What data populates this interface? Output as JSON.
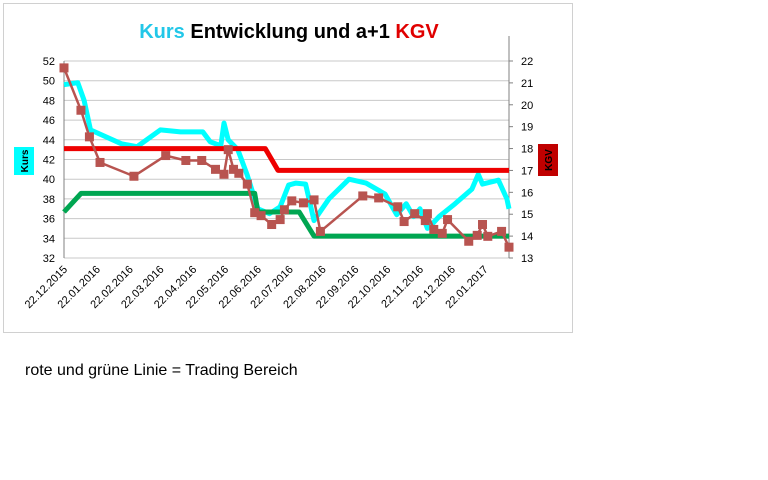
{
  "caption": "rote und grüne Linie = Trading Bereich",
  "chart_data": {
    "type": "line",
    "title_parts": [
      {
        "text": "Kurs",
        "color": "#22c7e8"
      },
      {
        "text": " Entwicklung und a+1 ",
        "color": "#000000"
      },
      {
        "text": "KGV",
        "color": "#e00000"
      }
    ],
    "ylabel_left": "Kurs",
    "ylabel_right": "KGV",
    "ylabel_left_bg": "#00ffff",
    "ylabel_right_bg": "#c00000",
    "y_left": {
      "min": 32,
      "max": 52,
      "ticks": [
        "32",
        "34",
        "36",
        "38",
        "40",
        "42",
        "44",
        "46",
        "48",
        "50",
        "52"
      ]
    },
    "y_right": {
      "min": 13,
      "max": 22,
      "ticks": [
        "13",
        "14",
        "15",
        "16",
        "17",
        "18",
        "19",
        "20",
        "21",
        "22"
      ]
    },
    "grid": true,
    "x_range": {
      "start": "2015-12-22",
      "end": "2017-02-14"
    },
    "x_ticks": [
      "22.12.2015",
      "22.01.2016",
      "22.02.2016",
      "22.03.2016",
      "22.04.2016",
      "22.05.2016",
      "22.06.2016",
      "22.07.2016",
      "22.08.2016",
      "22.09.2016",
      "22.10.2016",
      "22.11.2016",
      "22.12.2016",
      "22.01.2017"
    ],
    "series": [
      {
        "color": "#00ffff",
        "axis": "left",
        "style": "thick-line",
        "points": [
          [
            "2015-12-22",
            49.6
          ],
          [
            "2016-01-04",
            49.8
          ],
          [
            "2016-01-10",
            48.0
          ],
          [
            "2016-01-16",
            45.0
          ],
          [
            "2016-02-14",
            43.6
          ],
          [
            "2016-02-29",
            43.3
          ],
          [
            "2016-03-22",
            45.0
          ],
          [
            "2016-04-10",
            44.8
          ],
          [
            "2016-05-01",
            44.8
          ],
          [
            "2016-05-08",
            43.8
          ],
          [
            "2016-05-18",
            43.4
          ],
          [
            "2016-05-21",
            45.7
          ],
          [
            "2016-05-25",
            44.0
          ],
          [
            "2016-06-03",
            43.0
          ],
          [
            "2016-06-12",
            40.4
          ],
          [
            "2016-06-22",
            37.0
          ],
          [
            "2016-07-03",
            36.5
          ],
          [
            "2016-07-13",
            37.2
          ],
          [
            "2016-07-21",
            39.4
          ],
          [
            "2016-07-28",
            39.6
          ],
          [
            "2016-08-06",
            39.5
          ],
          [
            "2016-08-14",
            35.8
          ],
          [
            "2016-08-28",
            38.0
          ],
          [
            "2016-09-16",
            40.0
          ],
          [
            "2016-10-02",
            39.6
          ],
          [
            "2016-10-20",
            38.5
          ],
          [
            "2016-10-31",
            36.4
          ],
          [
            "2016-11-09",
            37.5
          ],
          [
            "2016-11-16",
            36.2
          ],
          [
            "2016-11-22",
            37.0
          ],
          [
            "2016-11-29",
            35.0
          ],
          [
            "2016-12-04",
            35.5
          ],
          [
            "2016-12-10",
            36.2
          ],
          [
            "2016-12-25",
            37.5
          ],
          [
            "2017-01-10",
            39.0
          ],
          [
            "2017-01-16",
            40.5
          ],
          [
            "2017-01-20",
            39.5
          ],
          [
            "2017-02-04",
            39.9
          ],
          [
            "2017-02-12",
            38.0
          ],
          [
            "2017-02-14",
            37.0
          ]
        ]
      },
      {
        "color": "#b85450",
        "axis": "left",
        "style": "line-markers",
        "points": [
          [
            "2015-12-22",
            51.3
          ],
          [
            "2016-01-07",
            47.0
          ],
          [
            "2016-01-15",
            44.3
          ],
          [
            "2016-01-25",
            41.7
          ],
          [
            "2016-02-26",
            40.3
          ],
          [
            "2016-03-27",
            42.4
          ],
          [
            "2016-04-15",
            41.9
          ],
          [
            "2016-04-30",
            41.9
          ],
          [
            "2016-05-13",
            41.0
          ],
          [
            "2016-05-21",
            40.5
          ],
          [
            "2016-05-25",
            43.0
          ],
          [
            "2016-05-30",
            41.0
          ],
          [
            "2016-06-04",
            40.6
          ],
          [
            "2016-06-12",
            39.5
          ],
          [
            "2016-06-19",
            36.6
          ],
          [
            "2016-06-25",
            36.3
          ],
          [
            "2016-07-05",
            35.4
          ],
          [
            "2016-07-13",
            35.9
          ],
          [
            "2016-07-17",
            36.9
          ],
          [
            "2016-07-24",
            37.8
          ],
          [
            "2016-08-04",
            37.6
          ],
          [
            "2016-08-14",
            37.9
          ],
          [
            "2016-08-20",
            34.7
          ],
          [
            "2016-09-29",
            38.3
          ],
          [
            "2016-10-14",
            38.1
          ],
          [
            "2016-11-01",
            37.2
          ],
          [
            "2016-11-07",
            35.7
          ],
          [
            "2016-11-17",
            36.5
          ],
          [
            "2016-11-27",
            35.8
          ],
          [
            "2016-11-29",
            36.5
          ],
          [
            "2016-12-05",
            34.9
          ],
          [
            "2016-12-13",
            34.5
          ],
          [
            "2016-12-18",
            35.9
          ],
          [
            "2017-01-07",
            33.7
          ],
          [
            "2017-01-15",
            34.3
          ],
          [
            "2017-01-20",
            35.4
          ],
          [
            "2017-01-25",
            34.2
          ],
          [
            "2017-02-07",
            34.7
          ],
          [
            "2017-02-14",
            33.1
          ]
        ]
      },
      {
        "color": "#ee0000",
        "axis": "right",
        "style": "thick-line",
        "points": [
          [
            "2015-12-22",
            18.0
          ],
          [
            "2016-06-29",
            18.0
          ],
          [
            "2016-07-11",
            17.0
          ],
          [
            "2017-02-14",
            17.0
          ]
        ]
      },
      {
        "color": "#00a651",
        "axis": "right",
        "style": "thick-line",
        "points": [
          [
            "2015-12-22",
            15.1
          ],
          [
            "2016-01-07",
            15.95
          ],
          [
            "2016-06-19",
            15.95
          ],
          [
            "2016-06-22",
            15.1
          ],
          [
            "2016-07-31",
            15.1
          ],
          [
            "2016-08-14",
            14.0
          ],
          [
            "2017-02-14",
            14.0
          ]
        ]
      }
    ]
  }
}
